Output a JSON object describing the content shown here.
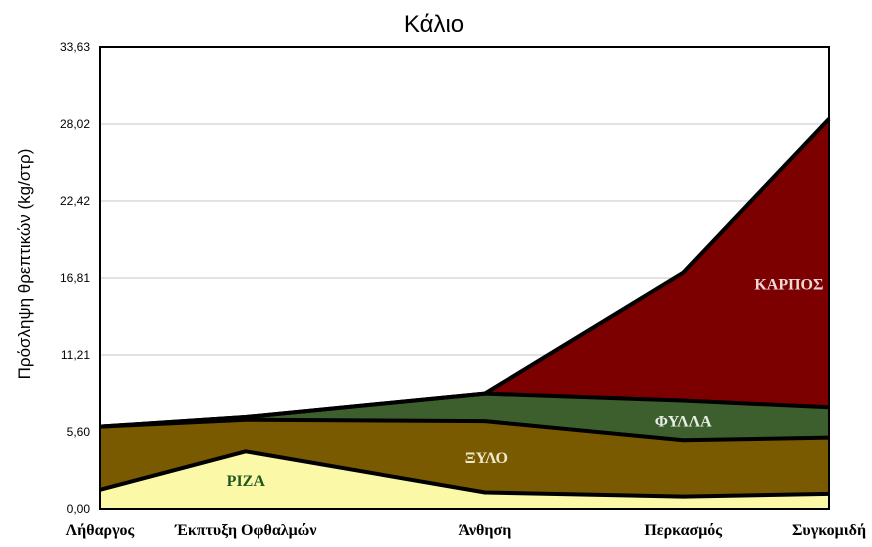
{
  "chart_data": {
    "type": "area",
    "stacked": true,
    "title": "Κάλιο",
    "xlabel": "",
    "ylabel": "Πρόσληψη θρεπτικών (kg/στρ)",
    "ylim": [
      0,
      33.63
    ],
    "yticks": [
      "0,00",
      "5,60",
      "11,21",
      "16,81",
      "22,42",
      "28,02",
      "33,63"
    ],
    "grid": true,
    "categories": [
      "Λήθαργος",
      "Έκπτυξη Οφθαλμών",
      "Άνθηση",
      "Περκασμός",
      "Συγκομιδή"
    ],
    "x": [
      0,
      1,
      2.64,
      4,
      5
    ],
    "series": [
      {
        "name": "ΡΙΖΑ",
        "label_color": "#1e5a1e",
        "fill": "#fbf8a8",
        "values": [
          1.4,
          4.2,
          1.2,
          0.9,
          1.1
        ]
      },
      {
        "name": "ΞΥΛΟ",
        "label_color": "#eee8c8",
        "fill": "#7a5a00",
        "values": [
          4.6,
          2.3,
          5.2,
          4.1,
          4.1
        ]
      },
      {
        "name": "ΦΥΛΛΑ",
        "label_color": "#e6eee6",
        "fill": "#3d5e2d",
        "values": [
          0.0,
          0.2,
          2.0,
          2.9,
          2.2
        ]
      },
      {
        "name": "ΚΑΡΠΟΣ",
        "label_color": "#eed8d8",
        "fill": "#7d0000",
        "values": [
          0.0,
          0.0,
          0.0,
          9.3,
          21.0
        ]
      }
    ]
  }
}
